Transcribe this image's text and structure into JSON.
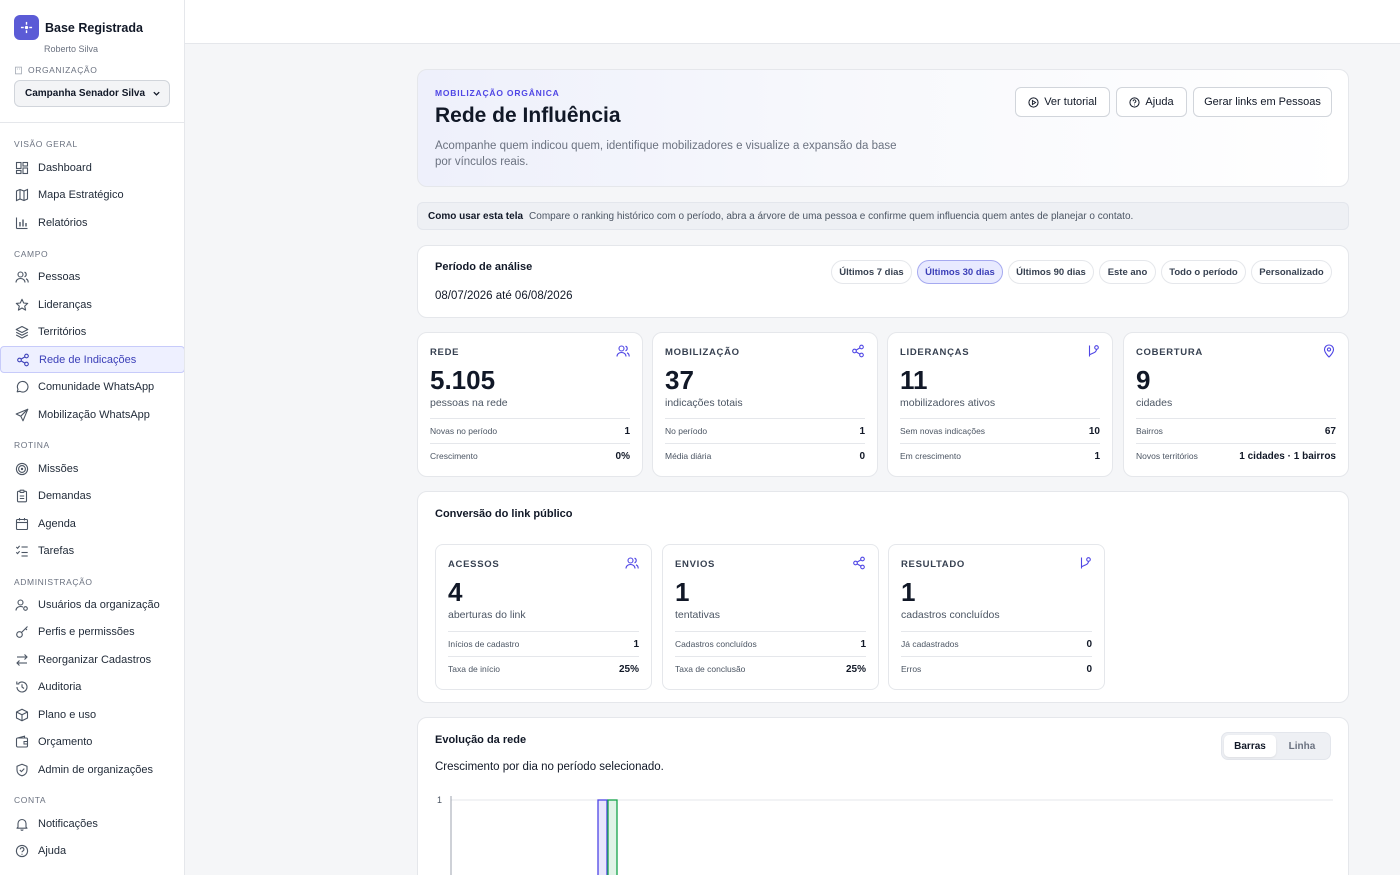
{
  "sidebar": {
    "brand_name": "Base Registrada",
    "user_name": "Roberto Silva",
    "org_label": "ORGANIZAÇÃO",
    "org_selected": "Campanha Senador Silva",
    "sections": {
      "overview": "VISÃO GERAL",
      "field": "CAMPO",
      "routine": "ROTINA",
      "admin": "ADMINISTRAÇÃO",
      "account": "CONTA"
    },
    "items": {
      "dashboard": "Dashboard",
      "mapa": "Mapa Estratégico",
      "relatorios": "Relatórios",
      "pessoas": "Pessoas",
      "liderancas": "Lideranças",
      "territorios": "Territórios",
      "rede": "Rede de Indicações",
      "comunidade": "Comunidade WhatsApp",
      "mobilizacao": "Mobilização WhatsApp",
      "missoes": "Missões",
      "demandas": "Demandas",
      "agenda": "Agenda",
      "tarefas": "Tarefas",
      "usuarios": "Usuários da organização",
      "perfis": "Perfis e permissões",
      "reorganizar": "Reorganizar Cadastros",
      "auditoria": "Auditoria",
      "plano": "Plano e uso",
      "orcamento": "Orçamento",
      "admin_orgs": "Admin de organizações",
      "notificacoes": "Notificações",
      "ajuda": "Ajuda"
    }
  },
  "hero": {
    "kicker": "MOBILIZAÇÃO ORGÂNICA",
    "title": "Rede de Influência",
    "description": "Acompanhe quem indicou quem, identifique mobilizadores e visualize a expansão da base por vínculos reais.",
    "btn_tutorial": "Ver tutorial",
    "btn_help": "Ajuda",
    "btn_links": "Gerar links em Pessoas"
  },
  "howto": {
    "label": "Como usar esta tela",
    "text": "Compare o ranking histórico com o período, abra a árvore de uma pessoa e confirme quem influencia quem antes de planejar o contato."
  },
  "period": {
    "label": "Período de análise",
    "range": "08/07/2026 até 06/08/2026",
    "options": [
      "Últimos 7 dias",
      "Últimos 30 dias",
      "Últimos 90 dias",
      "Este ano",
      "Todo o período",
      "Personalizado"
    ],
    "selected": "Últimos 30 dias"
  },
  "stats": [
    {
      "label": "REDE",
      "value": "5.105",
      "sub": "pessoas na rede",
      "row1_k": "Novas no período",
      "row1_v": "1",
      "row2_k": "Crescimento",
      "row2_v": "0%",
      "icon": "users-icon"
    },
    {
      "label": "MOBILIZAÇÃO",
      "value": "37",
      "sub": "indicações totais",
      "row1_k": "No período",
      "row1_v": "1",
      "row2_k": "Média diária",
      "row2_v": "0",
      "icon": "share-icon"
    },
    {
      "label": "LIDERANÇAS",
      "value": "11",
      "sub": "mobilizadores ativos",
      "row1_k": "Sem novas indicações",
      "row1_v": "10",
      "row2_k": "Em crescimento",
      "row2_v": "1",
      "icon": "git-branch-icon"
    },
    {
      "label": "COBERTURA",
      "value": "9",
      "sub": "cidades",
      "row1_k": "Bairros",
      "row1_v": "67",
      "row2_k": "Novos territórios",
      "row2_v": "1 cidades · 1 bairros",
      "icon": "map-pin-icon"
    }
  ],
  "conversion": {
    "title": "Conversão do link público",
    "cards": [
      {
        "label": "ACESSOS",
        "value": "4",
        "sub": "aberturas do link",
        "row1_k": "Inícios de cadastro",
        "row1_v": "1",
        "row2_k": "Taxa de início",
        "row2_v": "25%",
        "icon": "users-icon"
      },
      {
        "label": "ENVIOS",
        "value": "1",
        "sub": "tentativas",
        "row1_k": "Cadastros concluídos",
        "row1_v": "1",
        "row2_k": "Taxa de conclusão",
        "row2_v": "25%",
        "icon": "share-icon"
      },
      {
        "label": "RESULTADO",
        "value": "1",
        "sub": "cadastros concluídos",
        "row1_k": "Já cadastrados",
        "row1_v": "0",
        "row2_k": "Erros",
        "row2_v": "0",
        "icon": "git-branch-icon"
      }
    ]
  },
  "evolution": {
    "title": "Evolução da rede",
    "subtitle": "Crescimento por dia no período selecionado.",
    "toggle_bars": "Barras",
    "toggle_line": "Linha"
  },
  "colors": {
    "accent": "#5b5bd6",
    "active_bg": "#eef0ff",
    "bar_blue": "#4f46e5",
    "bar_green": "#16a34a"
  },
  "chart_data": {
    "type": "bar",
    "ytick_labels": [
      "1"
    ],
    "ylim": [
      0,
      1
    ],
    "series": [
      {
        "values": [
          1
        ],
        "color": "#4f46e5"
      },
      {
        "values": [
          1
        ],
        "color": "#16a34a"
      }
    ]
  }
}
